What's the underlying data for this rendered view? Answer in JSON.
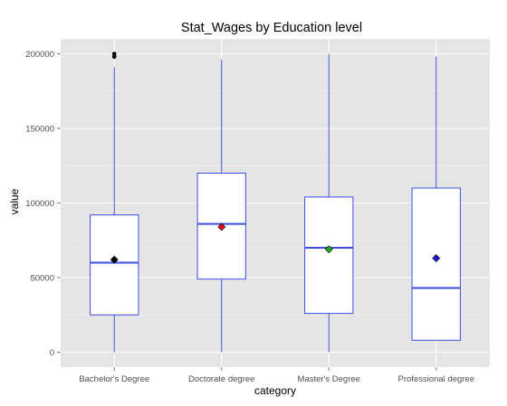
{
  "chart_data": {
    "type": "boxplot",
    "title": "Stat_Wages by Education level",
    "xlabel": "category",
    "ylabel": "value",
    "ylim": [
      -10000,
      210000
    ],
    "y_ticks": [
      0,
      50000,
      100000,
      150000,
      200000
    ],
    "grid": true,
    "legend": "none",
    "categories": [
      "Bachelor's Degree",
      "Doctorate degree",
      "Master's Degree",
      "Professional degree"
    ],
    "boxes": [
      {
        "category": "Bachelor's Degree",
        "whisker_low": 0,
        "q1": 25000,
        "median": 60000,
        "q3": 92000,
        "whisker_high": 191000,
        "mean": 62000,
        "outliers": [
          198000,
          200000
        ],
        "mean_color": "#000000"
      },
      {
        "category": "Doctorate degree",
        "whisker_low": 0,
        "q1": 49000,
        "median": 86000,
        "q3": 120000,
        "whisker_high": 196000,
        "mean": 84000,
        "outliers": [],
        "mean_color": "#e0001b"
      },
      {
        "category": "Master's Degree",
        "whisker_low": 0,
        "q1": 26000,
        "median": 70000,
        "q3": 104000,
        "whisker_high": 200000,
        "mean": 69000,
        "outliers": [],
        "mean_color": "#22b022"
      },
      {
        "category": "Professional degree",
        "whisker_low": 8000,
        "q1": 8000,
        "median": 43000,
        "q3": 110000,
        "whisker_high": 198000,
        "mean": 63000,
        "outliers": [],
        "mean_color": "#1c1ccc"
      }
    ],
    "colors": {
      "panel": "#e5e5e5",
      "grid": "#ffffff",
      "box_stroke": "#3a4fe0",
      "box_fill": "#ffffff"
    }
  }
}
